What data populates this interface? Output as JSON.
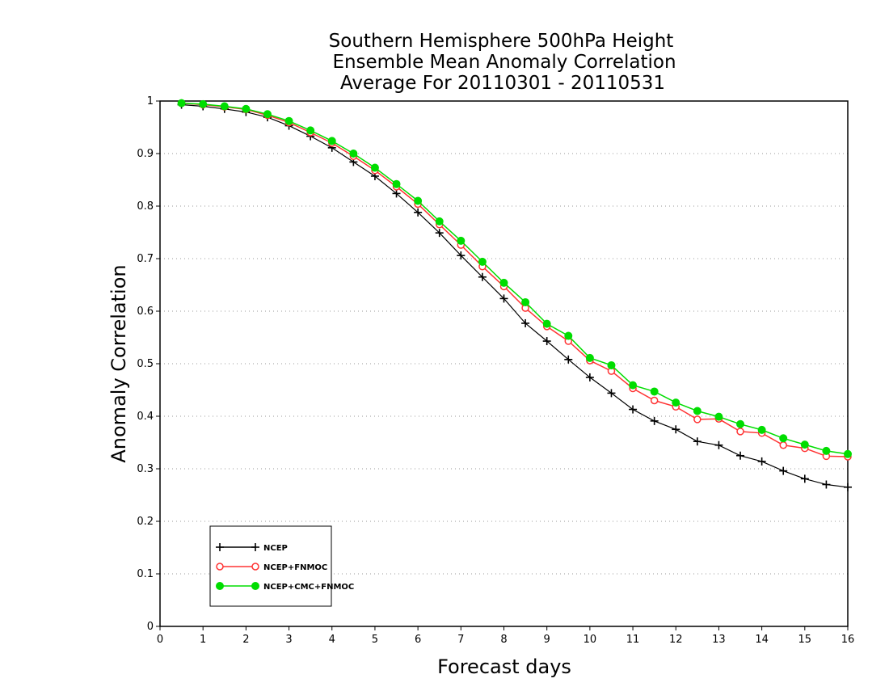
{
  "chart_data": {
    "type": "line",
    "title": [
      "Southern Hemisphere 500hPa Height",
      "Ensemble Mean Anomaly Correlation",
      "Average For 20110301 - 20110531"
    ],
    "xlabel": "Forecast days",
    "ylabel": "Anomaly Correlation",
    "xlim": [
      0,
      16
    ],
    "ylim": [
      0,
      1
    ],
    "xticks": [
      0,
      1,
      2,
      3,
      4,
      5,
      6,
      7,
      8,
      9,
      10,
      11,
      12,
      13,
      14,
      15,
      16
    ],
    "yticks": [
      0,
      0.1,
      0.2,
      0.3,
      0.4,
      0.5,
      0.6,
      0.7,
      0.8,
      0.9,
      1
    ],
    "ytick_labels": [
      "0",
      "0.1",
      "0.2",
      "0.3",
      "0.4",
      "0.5",
      "0.6",
      "0.7",
      "0.8",
      "0.9",
      "1"
    ],
    "grid": "horizontal dotted",
    "legend_position": "bottom-left",
    "x": [
      0.5,
      1,
      1.5,
      2,
      2.5,
      3,
      3.5,
      4,
      4.5,
      5,
      5.5,
      6,
      6.5,
      7,
      7.5,
      8,
      8.5,
      9,
      9.5,
      10,
      10.5,
      11,
      11.5,
      12,
      12.5,
      13,
      13.5,
      14,
      14.5,
      15,
      15.5,
      16
    ],
    "series": [
      {
        "name": "NCEP",
        "color": "#000000",
        "marker": "plus",
        "values": [
          0.993,
          0.99,
          0.985,
          0.979,
          0.969,
          0.953,
          0.933,
          0.911,
          0.884,
          0.857,
          0.824,
          0.788,
          0.749,
          0.706,
          0.665,
          0.624,
          0.577,
          0.543,
          0.508,
          0.474,
          0.444,
          0.413,
          0.391,
          0.375,
          0.352,
          0.345,
          0.325,
          0.314,
          0.296,
          0.281,
          0.27,
          0.265
        ]
      },
      {
        "name": "NCEP+FNMOC",
        "color": "#ff3333",
        "marker": "open-circle",
        "values": [
          0.996,
          0.993,
          0.989,
          0.984,
          0.973,
          0.959,
          0.94,
          0.92,
          0.895,
          0.868,
          0.837,
          0.804,
          0.765,
          0.726,
          0.685,
          0.647,
          0.606,
          0.571,
          0.543,
          0.506,
          0.486,
          0.453,
          0.43,
          0.418,
          0.394,
          0.395,
          0.371,
          0.368,
          0.345,
          0.339,
          0.324,
          0.323
        ]
      },
      {
        "name": "NCEP+CMC+FNMOC",
        "color": "#00dd00",
        "marker": "filled-circle",
        "values": [
          0.996,
          0.994,
          0.99,
          0.985,
          0.975,
          0.962,
          0.944,
          0.924,
          0.9,
          0.873,
          0.842,
          0.81,
          0.771,
          0.734,
          0.694,
          0.654,
          0.617,
          0.576,
          0.553,
          0.511,
          0.497,
          0.459,
          0.447,
          0.426,
          0.41,
          0.399,
          0.385,
          0.374,
          0.358,
          0.346,
          0.334,
          0.328
        ]
      }
    ]
  }
}
